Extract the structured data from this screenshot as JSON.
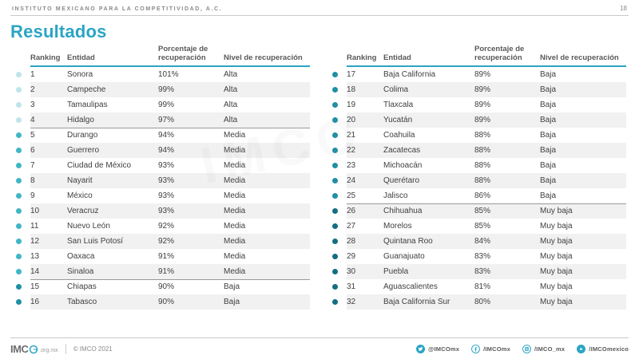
{
  "topbar": {
    "org_name": "INSTITUTO MEXICANO PARA LA COMPETITIVIDAD, A.C.",
    "page_number": "18"
  },
  "title": "Resultados",
  "accent_color": "#2aa5c4",
  "table_columns": {
    "ranking": "Ranking",
    "entidad": "Entidad",
    "porcentaje": "Porcentaje de recuperación",
    "nivel": "Nivel de recuperación"
  },
  "level_colors": {
    "Alta": "#bfe4eb",
    "Media": "#3fb6c6",
    "Baja": "#1f8fa4",
    "Muy baja": "#136e82"
  },
  "tables": {
    "left": {
      "rows": [
        {
          "rank": "1",
          "entity": "Sonora",
          "pct": "101%",
          "level": "Alta"
        },
        {
          "rank": "2",
          "entity": "Campeche",
          "pct": "99%",
          "level": "Alta"
        },
        {
          "rank": "3",
          "entity": "Tamaulipas",
          "pct": "99%",
          "level": "Alta"
        },
        {
          "rank": "4",
          "entity": "Hidalgo",
          "pct": "97%",
          "level": "Alta"
        },
        {
          "rank": "5",
          "entity": "Durango",
          "pct": "94%",
          "level": "Media"
        },
        {
          "rank": "6",
          "entity": "Guerrero",
          "pct": "94%",
          "level": "Media"
        },
        {
          "rank": "7",
          "entity": "Ciudad de México",
          "pct": "93%",
          "level": "Media"
        },
        {
          "rank": "8",
          "entity": "Nayarit",
          "pct": "93%",
          "level": "Media"
        },
        {
          "rank": "9",
          "entity": "México",
          "pct": "93%",
          "level": "Media"
        },
        {
          "rank": "10",
          "entity": "Veracruz",
          "pct": "93%",
          "level": "Media"
        },
        {
          "rank": "11",
          "entity": "Nuevo León",
          "pct": "92%",
          "level": "Media"
        },
        {
          "rank": "12",
          "entity": "San Luis Potosí",
          "pct": "92%",
          "level": "Media"
        },
        {
          "rank": "13",
          "entity": "Oaxaca",
          "pct": "91%",
          "level": "Media"
        },
        {
          "rank": "14",
          "entity": "Sinaloa",
          "pct": "91%",
          "level": "Media"
        },
        {
          "rank": "15",
          "entity": "Chiapas",
          "pct": "90%",
          "level": "Baja"
        },
        {
          "rank": "16",
          "entity": "Tabasco",
          "pct": "90%",
          "level": "Baja"
        }
      ]
    },
    "right": {
      "rows": [
        {
          "rank": "17",
          "entity": "Baja California",
          "pct": "89%",
          "level": "Baja"
        },
        {
          "rank": "18",
          "entity": "Colima",
          "pct": "89%",
          "level": "Baja"
        },
        {
          "rank": "19",
          "entity": "Tlaxcala",
          "pct": "89%",
          "level": "Baja"
        },
        {
          "rank": "20",
          "entity": "Yucatán",
          "pct": "89%",
          "level": "Baja"
        },
        {
          "rank": "21",
          "entity": "Coahuila",
          "pct": "88%",
          "level": "Baja"
        },
        {
          "rank": "22",
          "entity": "Zacatecas",
          "pct": "88%",
          "level": "Baja"
        },
        {
          "rank": "23",
          "entity": "Michoacán",
          "pct": "88%",
          "level": "Baja"
        },
        {
          "rank": "24",
          "entity": "Querétaro",
          "pct": "88%",
          "level": "Baja"
        },
        {
          "rank": "25",
          "entity": "Jalisco",
          "pct": "86%",
          "level": "Baja"
        },
        {
          "rank": "26",
          "entity": "Chihuahua",
          "pct": "85%",
          "level": "Muy baja"
        },
        {
          "rank": "27",
          "entity": "Morelos",
          "pct": "85%",
          "level": "Muy baja"
        },
        {
          "rank": "28",
          "entity": "Quintana Roo",
          "pct": "84%",
          "level": "Muy baja"
        },
        {
          "rank": "29",
          "entity": "Guanajuato",
          "pct": "83%",
          "level": "Muy baja"
        },
        {
          "rank": "30",
          "entity": "Puebla",
          "pct": "83%",
          "level": "Muy baja"
        },
        {
          "rank": "31",
          "entity": "Aguascalientes",
          "pct": "81%",
          "level": "Muy baja"
        },
        {
          "rank": "32",
          "entity": "Baja California Sur",
          "pct": "80%",
          "level": "Muy baja"
        }
      ]
    }
  },
  "watermark": "IMCO",
  "footer": {
    "logo_prefix": "IMC",
    "logo_suffix": ".org.mx",
    "copyright": "© IMCO 2021",
    "social": [
      {
        "icon": "twitter-icon",
        "handle": "@IMCOmx"
      },
      {
        "icon": "facebook-icon",
        "handle": "/IMCOmx"
      },
      {
        "icon": "instagram-icon",
        "handle": "/IMCO_mx"
      },
      {
        "icon": "youtube-icon",
        "handle": "/IMCOmexico"
      }
    ]
  }
}
